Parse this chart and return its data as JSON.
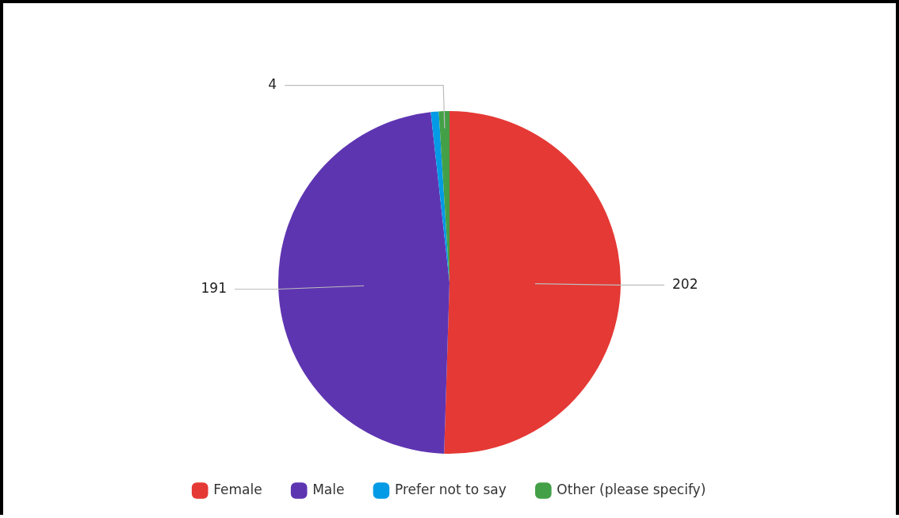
{
  "chart_data": {
    "type": "pie",
    "categories": [
      "Female",
      "Male",
      "Prefer not to say",
      "Other (please specify)"
    ],
    "values": [
      202,
      191,
      3,
      4
    ],
    "colors": [
      "#e53935",
      "#5e35b1",
      "#039be5",
      "#43a047"
    ],
    "value_labels": [
      "202",
      "191",
      null,
      "4"
    ],
    "legend": "bottom"
  }
}
